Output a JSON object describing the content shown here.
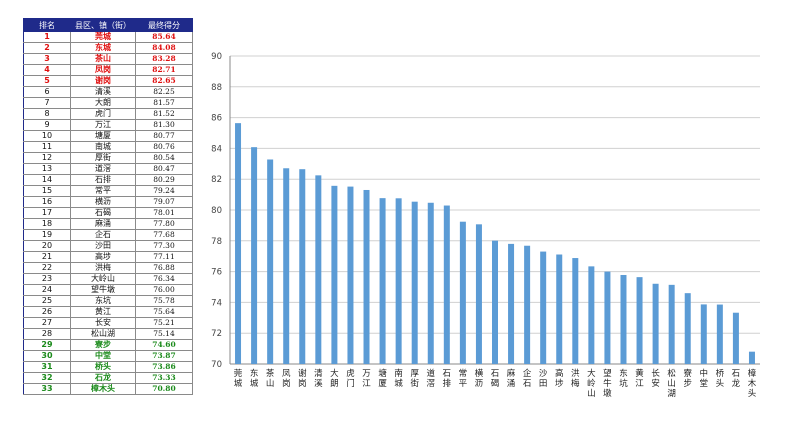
{
  "table": {
    "headers": [
      "排名",
      "县区、镇（街）",
      "最终得分"
    ],
    "rows": [
      {
        "rank": "1",
        "name": "莞城",
        "score": "85.64"
      },
      {
        "rank": "2",
        "name": "东城",
        "score": "84.08"
      },
      {
        "rank": "3",
        "name": "茶山",
        "score": "83.28"
      },
      {
        "rank": "4",
        "name": "凤岗",
        "score": "82.71"
      },
      {
        "rank": "5",
        "name": "谢岗",
        "score": "82.65"
      },
      {
        "rank": "6",
        "name": "清溪",
        "score": "82.25"
      },
      {
        "rank": "7",
        "name": "大朗",
        "score": "81.57"
      },
      {
        "rank": "8",
        "name": "虎门",
        "score": "81.52"
      },
      {
        "rank": "9",
        "name": "万江",
        "score": "81.30"
      },
      {
        "rank": "10",
        "name": "塘厦",
        "score": "80.77"
      },
      {
        "rank": "11",
        "name": "南城",
        "score": "80.76"
      },
      {
        "rank": "12",
        "name": "厚街",
        "score": "80.54"
      },
      {
        "rank": "13",
        "name": "道滘",
        "score": "80.47"
      },
      {
        "rank": "14",
        "name": "石排",
        "score": "80.29"
      },
      {
        "rank": "15",
        "name": "常平",
        "score": "79.24"
      },
      {
        "rank": "16",
        "name": "横沥",
        "score": "79.07"
      },
      {
        "rank": "17",
        "name": "石碣",
        "score": "78.01"
      },
      {
        "rank": "18",
        "name": "麻涌",
        "score": "77.80"
      },
      {
        "rank": "19",
        "name": "企石",
        "score": "77.68"
      },
      {
        "rank": "20",
        "name": "沙田",
        "score": "77.30"
      },
      {
        "rank": "21",
        "name": "高埗",
        "score": "77.11"
      },
      {
        "rank": "22",
        "name": "洪梅",
        "score": "76.88"
      },
      {
        "rank": "23",
        "name": "大岭山",
        "score": "76.34"
      },
      {
        "rank": "24",
        "name": "望牛墩",
        "score": "76.00"
      },
      {
        "rank": "25",
        "name": "东坑",
        "score": "75.78"
      },
      {
        "rank": "26",
        "name": "黄江",
        "score": "75.64"
      },
      {
        "rank": "27",
        "name": "长安",
        "score": "75.21"
      },
      {
        "rank": "28",
        "name": "松山湖",
        "score": "75.14"
      },
      {
        "rank": "29",
        "name": "寮步",
        "score": "74.60"
      },
      {
        "rank": "30",
        "name": "中堂",
        "score": "73.87"
      },
      {
        "rank": "31",
        "name": "桥头",
        "score": "73.86"
      },
      {
        "rank": "32",
        "name": "石龙",
        "score": "73.33"
      },
      {
        "rank": "33",
        "name": "樟木头",
        "score": "70.80"
      }
    ]
  },
  "colors": {
    "bar": "#5b9bd5",
    "header": "#1f2a8a",
    "top": "#e01010",
    "bottom": "#1a8a1a"
  },
  "chart_data": {
    "type": "bar",
    "categories": [
      "莞城",
      "东城",
      "茶山",
      "凤岗",
      "谢岗",
      "清溪",
      "大朗",
      "虎门",
      "万江",
      "塘厦",
      "南城",
      "厚街",
      "道滘",
      "石排",
      "常平",
      "横沥",
      "石碣",
      "麻涌",
      "企石",
      "沙田",
      "高埗",
      "洪梅",
      "大岭山",
      "望牛墩",
      "东坑",
      "黄江",
      "长安",
      "松山湖",
      "寮步",
      "中堂",
      "桥头",
      "石龙",
      "樟木头"
    ],
    "values": [
      85.64,
      84.08,
      83.28,
      82.71,
      82.65,
      82.25,
      81.57,
      81.52,
      81.3,
      80.77,
      80.76,
      80.54,
      80.47,
      80.29,
      79.24,
      79.07,
      78.01,
      77.8,
      77.68,
      77.3,
      77.11,
      76.88,
      76.34,
      76.0,
      75.78,
      75.64,
      75.21,
      75.14,
      74.6,
      73.87,
      73.86,
      73.33,
      70.8
    ],
    "ylim": [
      70,
      90
    ],
    "yticks": [
      70,
      72,
      74,
      76,
      78,
      80,
      82,
      84,
      86,
      88,
      90
    ],
    "title": "",
    "xlabel": "",
    "ylabel": "",
    "grid": true,
    "legend": "none"
  }
}
